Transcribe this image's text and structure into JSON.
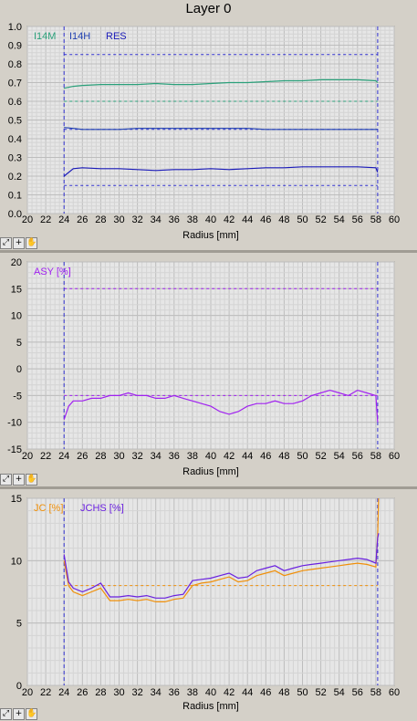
{
  "window": {
    "title": "Layer 0"
  },
  "toolbar": {
    "zoom_icon": "zoom-pan-icon",
    "crosshair_icon": "crosshair-icon",
    "hand_icon": "hand-icon",
    "crosshair_glyph": "+"
  },
  "colors": {
    "background": "#e6e6e6",
    "grid": "#c4c4c4",
    "i14m": "#2aa07a",
    "i14h": "#2040b0",
    "res": "#1a1ab8",
    "asy": "#a020f0",
    "jc": "#f0900a",
    "jchs": "#6a20e0",
    "marker": "#3030d0"
  },
  "chart_data": [
    {
      "type": "line",
      "title": "Layer 0",
      "xlabel": "Radius [mm]",
      "ylabel": "",
      "xlim": [
        20,
        60
      ],
      "ylim": [
        0,
        1.0
      ],
      "xticks": [
        20,
        22,
        24,
        26,
        28,
        30,
        32,
        34,
        36,
        38,
        40,
        42,
        44,
        46,
        48,
        50,
        52,
        54,
        56,
        58,
        60
      ],
      "yticks": [
        0,
        0.1,
        0.2,
        0.3,
        0.4,
        0.5,
        0.6,
        0.7,
        0.8,
        0.9,
        1.0
      ],
      "ytick_labels": [
        "0.0",
        "0.1",
        "0.2",
        "0.3",
        "0.4",
        "0.5",
        "0.6",
        "0.7",
        "0.8",
        "0.9",
        "1.0"
      ],
      "legend": [
        "I14M",
        "I14H",
        "RES"
      ],
      "grid": true,
      "vlines": [
        24,
        58.2
      ],
      "series": [
        {
          "name": "I14M",
          "color": "#2aa07a",
          "x": [
            24,
            25,
            26,
            28,
            30,
            32,
            34,
            36,
            38,
            40,
            42,
            44,
            46,
            48,
            50,
            52,
            54,
            56,
            58,
            58.2
          ],
          "y": [
            0.67,
            0.68,
            0.685,
            0.69,
            0.69,
            0.69,
            0.695,
            0.69,
            0.69,
            0.695,
            0.7,
            0.7,
            0.705,
            0.71,
            0.71,
            0.715,
            0.715,
            0.715,
            0.71,
            0.7
          ],
          "ref": 0.6
        },
        {
          "name": "I14H",
          "color": "#2040b0",
          "x": [
            24,
            25,
            26,
            28,
            30,
            32,
            34,
            36,
            38,
            40,
            42,
            44,
            46,
            48,
            50,
            52,
            54,
            56,
            58,
            58.2
          ],
          "y": [
            0.46,
            0.455,
            0.45,
            0.45,
            0.45,
            0.455,
            0.455,
            0.455,
            0.455,
            0.455,
            0.455,
            0.455,
            0.45,
            0.45,
            0.45,
            0.45,
            0.45,
            0.45,
            0.45,
            0.45
          ],
          "ref": 0.45
        },
        {
          "name": "RES",
          "color": "#1a1ab8",
          "x": [
            24,
            25,
            26,
            28,
            30,
            32,
            34,
            36,
            38,
            40,
            42,
            44,
            46,
            48,
            50,
            52,
            54,
            56,
            58,
            58.2
          ],
          "y": [
            0.2,
            0.24,
            0.245,
            0.24,
            0.24,
            0.235,
            0.23,
            0.235,
            0.235,
            0.24,
            0.235,
            0.24,
            0.245,
            0.245,
            0.25,
            0.25,
            0.25,
            0.25,
            0.245,
            0.22
          ],
          "ref": 0.15
        }
      ],
      "ref_lines": [
        0.85,
        0.6,
        0.45,
        0.15
      ]
    },
    {
      "type": "line",
      "xlabel": "Radius [mm]",
      "ylabel": "",
      "xlim": [
        20,
        60
      ],
      "ylim": [
        -15,
        20
      ],
      "xticks": [
        20,
        22,
        24,
        26,
        28,
        30,
        32,
        34,
        36,
        38,
        40,
        42,
        44,
        46,
        48,
        50,
        52,
        54,
        56,
        58,
        60
      ],
      "yticks": [
        -15,
        -10,
        -5,
        0,
        5,
        10,
        15,
        20
      ],
      "ytick_labels": [
        "-15",
        "-10",
        "-5",
        "0",
        "5",
        "10",
        "15",
        "20"
      ],
      "legend": [
        "ASY [%]"
      ],
      "grid": true,
      "vlines": [
        24,
        58.2
      ],
      "ref_lines": [
        15,
        -5
      ],
      "series": [
        {
          "name": "ASY [%]",
          "color": "#a020f0",
          "x": [
            24,
            24.5,
            25,
            26,
            27,
            28,
            29,
            30,
            31,
            32,
            33,
            34,
            35,
            36,
            37,
            38,
            39,
            40,
            41,
            42,
            43,
            44,
            45,
            46,
            47,
            48,
            49,
            50,
            51,
            52,
            53,
            54,
            55,
            56,
            57,
            58,
            58.2
          ],
          "y": [
            -9.5,
            -7,
            -6,
            -6,
            -5.5,
            -5.5,
            -5,
            -5,
            -4.5,
            -5,
            -5,
            -5.5,
            -5.5,
            -5,
            -5.5,
            -6,
            -6.5,
            -7,
            -8,
            -8.5,
            -8,
            -7,
            -6.5,
            -6.5,
            -6,
            -6.5,
            -6.5,
            -6,
            -5,
            -4.5,
            -4,
            -4.5,
            -5,
            -4,
            -4.5,
            -5,
            -10
          ]
        }
      ]
    },
    {
      "type": "line",
      "xlabel": "Radius [mm]",
      "ylabel": "",
      "xlim": [
        20,
        60
      ],
      "ylim": [
        0,
        15
      ],
      "xticks": [
        20,
        22,
        24,
        26,
        28,
        30,
        32,
        34,
        36,
        38,
        40,
        42,
        44,
        46,
        48,
        50,
        52,
        54,
        56,
        58,
        60
      ],
      "yticks": [
        0,
        5,
        10,
        15
      ],
      "ytick_labels": [
        "0",
        "5",
        "10",
        "15"
      ],
      "legend": [
        "JC [%]",
        "JCHS [%]"
      ],
      "grid": true,
      "vlines": [
        24,
        58.2
      ],
      "ref_lines": [
        8
      ],
      "series": [
        {
          "name": "JC [%]",
          "color": "#f0900a",
          "x": [
            24,
            24.5,
            25,
            26,
            27,
            28,
            29,
            30,
            31,
            32,
            33,
            34,
            35,
            36,
            37,
            38,
            39,
            40,
            41,
            42,
            43,
            44,
            45,
            46,
            47,
            48,
            49,
            50,
            51,
            52,
            53,
            54,
            55,
            56,
            57,
            58,
            58.2,
            58.3
          ],
          "y": [
            10,
            8,
            7.5,
            7.2,
            7.5,
            7.8,
            6.8,
            6.8,
            6.9,
            6.8,
            6.9,
            6.7,
            6.7,
            6.9,
            7.0,
            8.0,
            8.2,
            8.3,
            8.5,
            8.7,
            8.3,
            8.4,
            8.8,
            9.0,
            9.2,
            8.8,
            9.0,
            9.2,
            9.3,
            9.4,
            9.5,
            9.6,
            9.7,
            9.8,
            9.7,
            9.5,
            12.0,
            15.0
          ]
        },
        {
          "name": "JCHS [%]",
          "color": "#6a20e0",
          "x": [
            24,
            24.5,
            25,
            26,
            27,
            28,
            29,
            30,
            31,
            32,
            33,
            34,
            35,
            36,
            37,
            38,
            39,
            40,
            41,
            42,
            43,
            44,
            45,
            46,
            47,
            48,
            49,
            50,
            51,
            52,
            53,
            54,
            55,
            56,
            57,
            58,
            58.2,
            58.3
          ],
          "y": [
            10.5,
            8.3,
            7.8,
            7.5,
            7.8,
            8.2,
            7.1,
            7.1,
            7.2,
            7.1,
            7.2,
            7.0,
            7.0,
            7.2,
            7.3,
            8.4,
            8.5,
            8.6,
            8.8,
            9.0,
            8.6,
            8.7,
            9.2,
            9.4,
            9.6,
            9.2,
            9.4,
            9.6,
            9.7,
            9.8,
            9.9,
            10.0,
            10.1,
            10.2,
            10.1,
            9.8,
            11.8,
            12.2
          ]
        }
      ]
    }
  ]
}
